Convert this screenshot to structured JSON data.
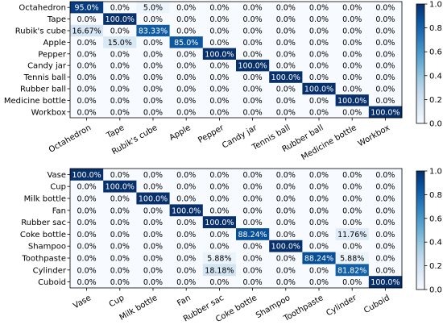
{
  "colors": {
    "low": "#f7fbff",
    "high": "#08306b",
    "text_dark": "#000000",
    "text_light": "#ffffff"
  },
  "chart_data": [
    {
      "type": "heatmap",
      "title": "",
      "xlabel": "",
      "ylabel": "",
      "rows": [
        "Octahedron",
        "Tape",
        "Rubik's cube",
        "Apple",
        "Pepper",
        "Candy jar",
        "Tennis ball",
        "Rubber ball",
        "Medicine bottle",
        "Workbox"
      ],
      "columns": [
        "Octahedron",
        "Tape",
        "Rubik's cube",
        "Apple",
        "Pepper",
        "Candy jar",
        "Tennis ball",
        "Rubber ball",
        "Medicine bottle",
        "Workbox"
      ],
      "values": [
        [
          0.95,
          0.0,
          0.05,
          0.0,
          0.0,
          0.0,
          0.0,
          0.0,
          0.0,
          0.0
        ],
        [
          0.0,
          1.0,
          0.0,
          0.0,
          0.0,
          0.0,
          0.0,
          0.0,
          0.0,
          0.0
        ],
        [
          0.1667,
          0.0,
          0.8333,
          0.0,
          0.0,
          0.0,
          0.0,
          0.0,
          0.0,
          0.0
        ],
        [
          0.0,
          0.15,
          0.0,
          0.85,
          0.0,
          0.0,
          0.0,
          0.0,
          0.0,
          0.0
        ],
        [
          0.0,
          0.0,
          0.0,
          0.0,
          1.0,
          0.0,
          0.0,
          0.0,
          0.0,
          0.0
        ],
        [
          0.0,
          0.0,
          0.0,
          0.0,
          0.0,
          1.0,
          0.0,
          0.0,
          0.0,
          0.0
        ],
        [
          0.0,
          0.0,
          0.0,
          0.0,
          0.0,
          0.0,
          1.0,
          0.0,
          0.0,
          0.0
        ],
        [
          0.0,
          0.0,
          0.0,
          0.0,
          0.0,
          0.0,
          0.0,
          1.0,
          0.0,
          0.0
        ],
        [
          0.0,
          0.0,
          0.0,
          0.0,
          0.0,
          0.0,
          0.0,
          0.0,
          1.0,
          0.0
        ],
        [
          0.0,
          0.0,
          0.0,
          0.0,
          0.0,
          0.0,
          0.0,
          0.0,
          0.0,
          1.0
        ]
      ],
      "cell_labels": [
        [
          "95.0%",
          "0.0%",
          "5.0%",
          "0.0%",
          "0.0%",
          "0.0%",
          "0.0%",
          "0.0%",
          "0.0%",
          "0.0%"
        ],
        [
          "0.0%",
          "100.0%",
          "0.0%",
          "0.0%",
          "0.0%",
          "0.0%",
          "0.0%",
          "0.0%",
          "0.0%",
          "0.0%"
        ],
        [
          "16.67%",
          "0.0%",
          "83.33%",
          "0.0%",
          "0.0%",
          "0.0%",
          "0.0%",
          "0.0%",
          "0.0%",
          "0.0%"
        ],
        [
          "0.0%",
          "15.0%",
          "0.0%",
          "85.0%",
          "0.0%",
          "0.0%",
          "0.0%",
          "0.0%",
          "0.0%",
          "0.0%"
        ],
        [
          "0.0%",
          "0.0%",
          "0.0%",
          "0.0%",
          "100.0%",
          "0.0%",
          "0.0%",
          "0.0%",
          "0.0%",
          "0.0%"
        ],
        [
          "0.0%",
          "0.0%",
          "0.0%",
          "0.0%",
          "0.0%",
          "100.0%",
          "0.0%",
          "0.0%",
          "0.0%",
          "0.0%"
        ],
        [
          "0.0%",
          "0.0%",
          "0.0%",
          "0.0%",
          "0.0%",
          "0.0%",
          "100.0%",
          "0.0%",
          "0.0%",
          "0.0%"
        ],
        [
          "0.0%",
          "0.0%",
          "0.0%",
          "0.0%",
          "0.0%",
          "0.0%",
          "0.0%",
          "100.0%",
          "0.0%",
          "0.0%"
        ],
        [
          "0.0%",
          "0.0%",
          "0.0%",
          "0.0%",
          "0.0%",
          "0.0%",
          "0.0%",
          "0.0%",
          "100.0%",
          "0.0%"
        ],
        [
          "0.0%",
          "0.0%",
          "0.0%",
          "0.0%",
          "0.0%",
          "0.0%",
          "0.0%",
          "0.0%",
          "0.0%",
          "100.0%"
        ]
      ],
      "colorbar": {
        "range": [
          0.0,
          1.0
        ],
        "ticks": [
          "0.0",
          "0.2",
          "0.4",
          "0.6",
          "0.8",
          "1.0"
        ]
      }
    },
    {
      "type": "heatmap",
      "title": "",
      "xlabel": "",
      "ylabel": "",
      "rows": [
        "Vase",
        "Cup",
        "Milk bottle",
        "Fan",
        "Rubber sac",
        "Coke bottle",
        "Shampoo",
        "Toothpaste",
        "Cylinder",
        "Cuboid"
      ],
      "columns": [
        "Vase",
        "Cup",
        "Milk bottle",
        "Fan",
        "Rubber sac",
        "Coke bottle",
        "Shampoo",
        "Toothpaste",
        "Cylinder",
        "Cuboid"
      ],
      "values": [
        [
          1.0,
          0.0,
          0.0,
          0.0,
          0.0,
          0.0,
          0.0,
          0.0,
          0.0,
          0.0
        ],
        [
          0.0,
          1.0,
          0.0,
          0.0,
          0.0,
          0.0,
          0.0,
          0.0,
          0.0,
          0.0
        ],
        [
          0.0,
          0.0,
          1.0,
          0.0,
          0.0,
          0.0,
          0.0,
          0.0,
          0.0,
          0.0
        ],
        [
          0.0,
          0.0,
          0.0,
          1.0,
          0.0,
          0.0,
          0.0,
          0.0,
          0.0,
          0.0
        ],
        [
          0.0,
          0.0,
          0.0,
          0.0,
          1.0,
          0.0,
          0.0,
          0.0,
          0.0,
          0.0
        ],
        [
          0.0,
          0.0,
          0.0,
          0.0,
          0.0,
          0.8824,
          0.0,
          0.0,
          0.1176,
          0.0
        ],
        [
          0.0,
          0.0,
          0.0,
          0.0,
          0.0,
          0.0,
          1.0,
          0.0,
          0.0,
          0.0
        ],
        [
          0.0,
          0.0,
          0.0,
          0.0,
          0.0588,
          0.0,
          0.0,
          0.8824,
          0.0588,
          0.0
        ],
        [
          0.0,
          0.0,
          0.0,
          0.0,
          0.1818,
          0.0,
          0.0,
          0.0,
          0.8182,
          0.0
        ],
        [
          0.0,
          0.0,
          0.0,
          0.0,
          0.0,
          0.0,
          0.0,
          0.0,
          0.0,
          1.0
        ]
      ],
      "cell_labels": [
        [
          "100.0%",
          "0.0%",
          "0.0%",
          "0.0%",
          "0.0%",
          "0.0%",
          "0.0%",
          "0.0%",
          "0.0%",
          "0.0%"
        ],
        [
          "0.0%",
          "100.0%",
          "0.0%",
          "0.0%",
          "0.0%",
          "0.0%",
          "0.0%",
          "0.0%",
          "0.0%",
          "0.0%"
        ],
        [
          "0.0%",
          "0.0%",
          "100.0%",
          "0.0%",
          "0.0%",
          "0.0%",
          "0.0%",
          "0.0%",
          "0.0%",
          "0.0%"
        ],
        [
          "0.0%",
          "0.0%",
          "0.0%",
          "100.0%",
          "0.0%",
          "0.0%",
          "0.0%",
          "0.0%",
          "0.0%",
          "0.0%"
        ],
        [
          "0.0%",
          "0.0%",
          "0.0%",
          "0.0%",
          "100.0%",
          "0.0%",
          "0.0%",
          "0.0%",
          "0.0%",
          "0.0%"
        ],
        [
          "0.0%",
          "0.0%",
          "0.0%",
          "0.0%",
          "0.0%",
          "88.24%",
          "0.0%",
          "0.0%",
          "11.76%",
          "0.0%"
        ],
        [
          "0.0%",
          "0.0%",
          "0.0%",
          "0.0%",
          "0.0%",
          "0.0%",
          "100.0%",
          "0.0%",
          "0.0%",
          "0.0%"
        ],
        [
          "0.0%",
          "0.0%",
          "0.0%",
          "0.0%",
          "5.88%",
          "0.0%",
          "0.0%",
          "88.24%",
          "5.88%",
          "0.0%"
        ],
        [
          "0.0%",
          "0.0%",
          "0.0%",
          "0.0%",
          "18.18%",
          "0.0%",
          "0.0%",
          "0.0%",
          "81.82%",
          "0.0%"
        ],
        [
          "0.0%",
          "0.0%",
          "0.0%",
          "0.0%",
          "0.0%",
          "0.0%",
          "0.0%",
          "0.0%",
          "0.0%",
          "100.0%"
        ]
      ],
      "colorbar": {
        "range": [
          0.0,
          1.0
        ],
        "ticks": [
          "0.0",
          "0.2",
          "0.4",
          "0.6",
          "0.8",
          "1.0"
        ]
      }
    }
  ]
}
